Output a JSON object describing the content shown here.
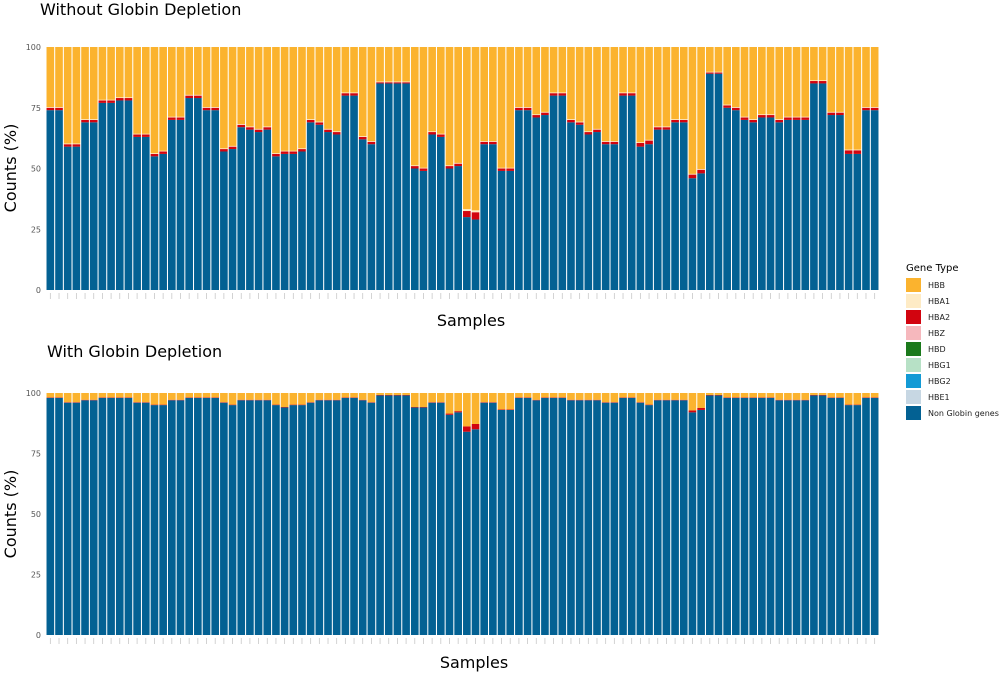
{
  "legend": {
    "title": "Gene Type",
    "items": [
      {
        "label": "HBB",
        "color": "#FBB32E"
      },
      {
        "label": "HBA1",
        "color": "#FEEBC5"
      },
      {
        "label": "HBA2",
        "color": "#D2040F"
      },
      {
        "label": "HBZ",
        "color": "#F6B8BD"
      },
      {
        "label": "HBD",
        "color": "#1B7A1C"
      },
      {
        "label": "HBG1",
        "color": "#B7E1C6"
      },
      {
        "label": "HBG2",
        "color": "#139AD5"
      },
      {
        "label": "HBE1",
        "color": "#C7D7E3"
      },
      {
        "label": "Non Globin genes",
        "color": "#036193"
      }
    ]
  },
  "chart_data": [
    {
      "type": "bar",
      "stacked": true,
      "title": "Without Globin Depletion",
      "xlabel": "Samples",
      "ylabel": "Counts (%)",
      "ylim": [
        0,
        100
      ],
      "yticks": [
        0,
        25,
        50,
        75,
        100
      ],
      "series": [
        {
          "name": "Non Globin genes",
          "values": [
            74,
            74,
            59,
            59,
            69,
            69,
            77,
            77,
            78,
            78,
            63,
            63,
            55,
            56,
            70,
            70,
            79,
            79,
            74,
            74,
            57,
            58,
            67,
            66,
            65,
            66,
            55,
            56,
            56,
            57,
            69,
            68,
            65,
            64,
            80,
            80,
            62,
            60,
            85,
            85,
            85,
            85,
            50,
            49,
            64,
            63,
            50,
            51,
            30,
            29,
            60,
            60,
            49,
            49,
            74,
            74,
            71,
            72,
            80,
            80,
            69,
            68,
            64,
            65,
            60,
            60,
            80,
            80,
            59,
            60,
            66,
            66,
            69,
            69,
            46,
            48,
            89,
            89,
            75,
            74,
            70,
            69,
            71,
            71,
            69,
            70,
            70,
            70,
            85,
            85,
            72,
            72,
            56,
            56,
            74,
            74
          ]
        },
        {
          "name": "HBA2",
          "values": [
            1,
            1,
            1,
            1,
            1,
            1,
            1,
            1,
            1,
            1,
            1,
            1,
            1,
            1,
            1,
            1,
            1,
            1,
            1,
            1,
            1,
            1,
            1,
            1,
            1,
            1,
            1,
            1,
            1,
            1,
            1,
            1,
            1,
            1,
            1,
            1,
            1,
            1,
            0.5,
            0.5,
            0.5,
            0.5,
            1,
            1,
            1,
            1,
            1,
            1,
            2.5,
            3,
            1,
            1,
            1,
            1,
            1,
            1,
            1,
            1,
            1,
            1,
            1,
            1,
            1,
            1,
            1,
            1,
            1,
            1,
            1.5,
            1.5,
            1,
            1,
            1,
            1,
            1.5,
            1.5,
            0.5,
            0.5,
            1,
            1,
            1,
            1,
            1,
            1,
            1,
            1,
            1,
            1,
            1,
            1,
            1,
            1,
            1.5,
            1.5,
            1,
            1
          ]
        },
        {
          "name": "HBA1",
          "values": [
            0.3,
            0.3,
            0.3,
            0.3,
            0.3,
            0.3,
            0.3,
            0.3,
            0.3,
            0.3,
            0.3,
            0.3,
            0.3,
            0.3,
            0.3,
            0.3,
            0.3,
            0.3,
            0.3,
            0.3,
            0.3,
            0.3,
            0.3,
            0.3,
            0.3,
            0.3,
            0.3,
            0.3,
            0.3,
            0.3,
            0.3,
            0.3,
            0.3,
            0.3,
            0.3,
            0.3,
            0.3,
            0.3,
            0.3,
            0.3,
            0.3,
            0.3,
            0.3,
            0.3,
            0.3,
            0.3,
            0.3,
            0.3,
            0.8,
            0.8,
            0.3,
            0.3,
            0.3,
            0.3,
            0.3,
            0.3,
            0.3,
            0.3,
            0.3,
            0.3,
            0.3,
            0.3,
            0.3,
            0.3,
            0.3,
            0.3,
            0.3,
            0.3,
            0.3,
            0.3,
            0.3,
            0.3,
            0.3,
            0.3,
            0.3,
            0.3,
            0.3,
            0.3,
            0.3,
            0.3,
            0.3,
            0.3,
            0.3,
            0.3,
            0.3,
            0.3,
            0.3,
            0.3,
            0.3,
            0.3,
            0.3,
            0.3,
            0.3,
            0.3,
            0.3,
            0.3
          ]
        },
        {
          "name": "HBB",
          "values": "remainder-to-100"
        }
      ]
    },
    {
      "type": "bar",
      "stacked": true,
      "title": "With Globin Depletion",
      "xlabel": "Samples",
      "ylabel": "Counts (%)",
      "ylim": [
        0,
        100
      ],
      "yticks": [
        0,
        25,
        50,
        75,
        100
      ],
      "series": [
        {
          "name": "Non Globin genes",
          "values": [
            98,
            98,
            96,
            96,
            97,
            97,
            98,
            98,
            98,
            98,
            96,
            96,
            95,
            95,
            97,
            97,
            98,
            98,
            98,
            98,
            96,
            95,
            97,
            97,
            97,
            97,
            95,
            94,
            95,
            95,
            96,
            97,
            97,
            97,
            98,
            98,
            97,
            96,
            99,
            99,
            99,
            99,
            94,
            94,
            96,
            96,
            91,
            92,
            84,
            85,
            96,
            96,
            93,
            93,
            98,
            98,
            97,
            98,
            98,
            98,
            97,
            97,
            97,
            97,
            96,
            96,
            98,
            98,
            96,
            95,
            97,
            97,
            97,
            97,
            92,
            93,
            99,
            99,
            98,
            98,
            98,
            98,
            98,
            98,
            97,
            97,
            97,
            97,
            99,
            99,
            98,
            98,
            95,
            95,
            98,
            98
          ]
        },
        {
          "name": "HBA2",
          "values": [
            0.2,
            0.2,
            0.2,
            0.2,
            0.2,
            0.2,
            0.2,
            0.2,
            0.2,
            0.2,
            0.2,
            0.2,
            0.2,
            0.2,
            0.2,
            0.2,
            0.2,
            0.2,
            0.2,
            0.2,
            0.2,
            0.2,
            0.2,
            0.2,
            0.2,
            0.2,
            0.2,
            0.2,
            0.2,
            0.2,
            0.2,
            0.2,
            0.2,
            0.2,
            0.2,
            0.2,
            0.2,
            0.2,
            0.2,
            0.2,
            0.2,
            0.2,
            0.2,
            0.2,
            0.2,
            0.2,
            0.5,
            0.5,
            2.2,
            2.2,
            0.2,
            0.2,
            0.2,
            0.2,
            0.2,
            0.2,
            0.2,
            0.2,
            0.2,
            0.2,
            0.2,
            0.2,
            0.2,
            0.2,
            0.2,
            0.2,
            0.2,
            0.2,
            0.2,
            0.2,
            0.2,
            0.2,
            0.2,
            0.2,
            0.8,
            0.8,
            0.2,
            0.2,
            0.2,
            0.2,
            0.2,
            0.2,
            0.2,
            0.2,
            0.2,
            0.2,
            0.2,
            0.2,
            0.2,
            0.2,
            0.2,
            0.2,
            0.2,
            0.2,
            0.2,
            0.2
          ]
        },
        {
          "name": "HBB",
          "values": "remainder-to-100"
        }
      ]
    }
  ]
}
